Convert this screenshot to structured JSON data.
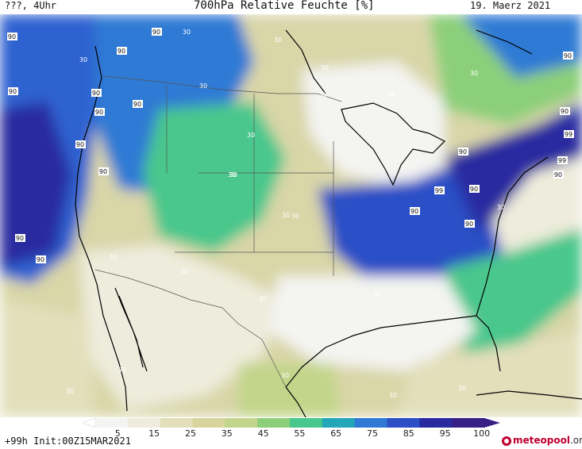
{
  "header": {
    "left": "???, 4Uhr",
    "title": "700hPa Relative Feuchte [%]",
    "date": "19. Maerz 2021"
  },
  "footer": {
    "run": "+99h Init:00Z15MAR2021",
    "brand": "meteopool",
    "brand_suffix": ".org"
  },
  "colorbar": {
    "labels": [
      "5",
      "15",
      "25",
      "35",
      "45",
      "55",
      "65",
      "75",
      "85",
      "95",
      "100"
    ],
    "colors": [
      "#f4f4f2",
      "#eeecdc",
      "#e3dfbb",
      "#d7d49d",
      "#c3d58a",
      "#8ccf7a",
      "#48c78c",
      "#22a6b8",
      "#2f7ad4",
      "#2c4fc6",
      "#2a2aa0",
      "#371f86"
    ]
  },
  "contour_labels": [
    "90",
    "90",
    "90",
    "90",
    "90",
    "90",
    "90",
    "90",
    "90",
    "90",
    "90",
    "90",
    "90",
    "90",
    "90",
    "90",
    "90",
    "90",
    "99",
    "99",
    "99",
    "30",
    "30",
    "30",
    "30",
    "30",
    "30",
    "30",
    "30",
    "30",
    "30",
    "30",
    "30",
    "30",
    "30",
    "30",
    "30",
    "30",
    "30",
    "30",
    "30",
    "30",
    "30",
    "30"
  ]
}
